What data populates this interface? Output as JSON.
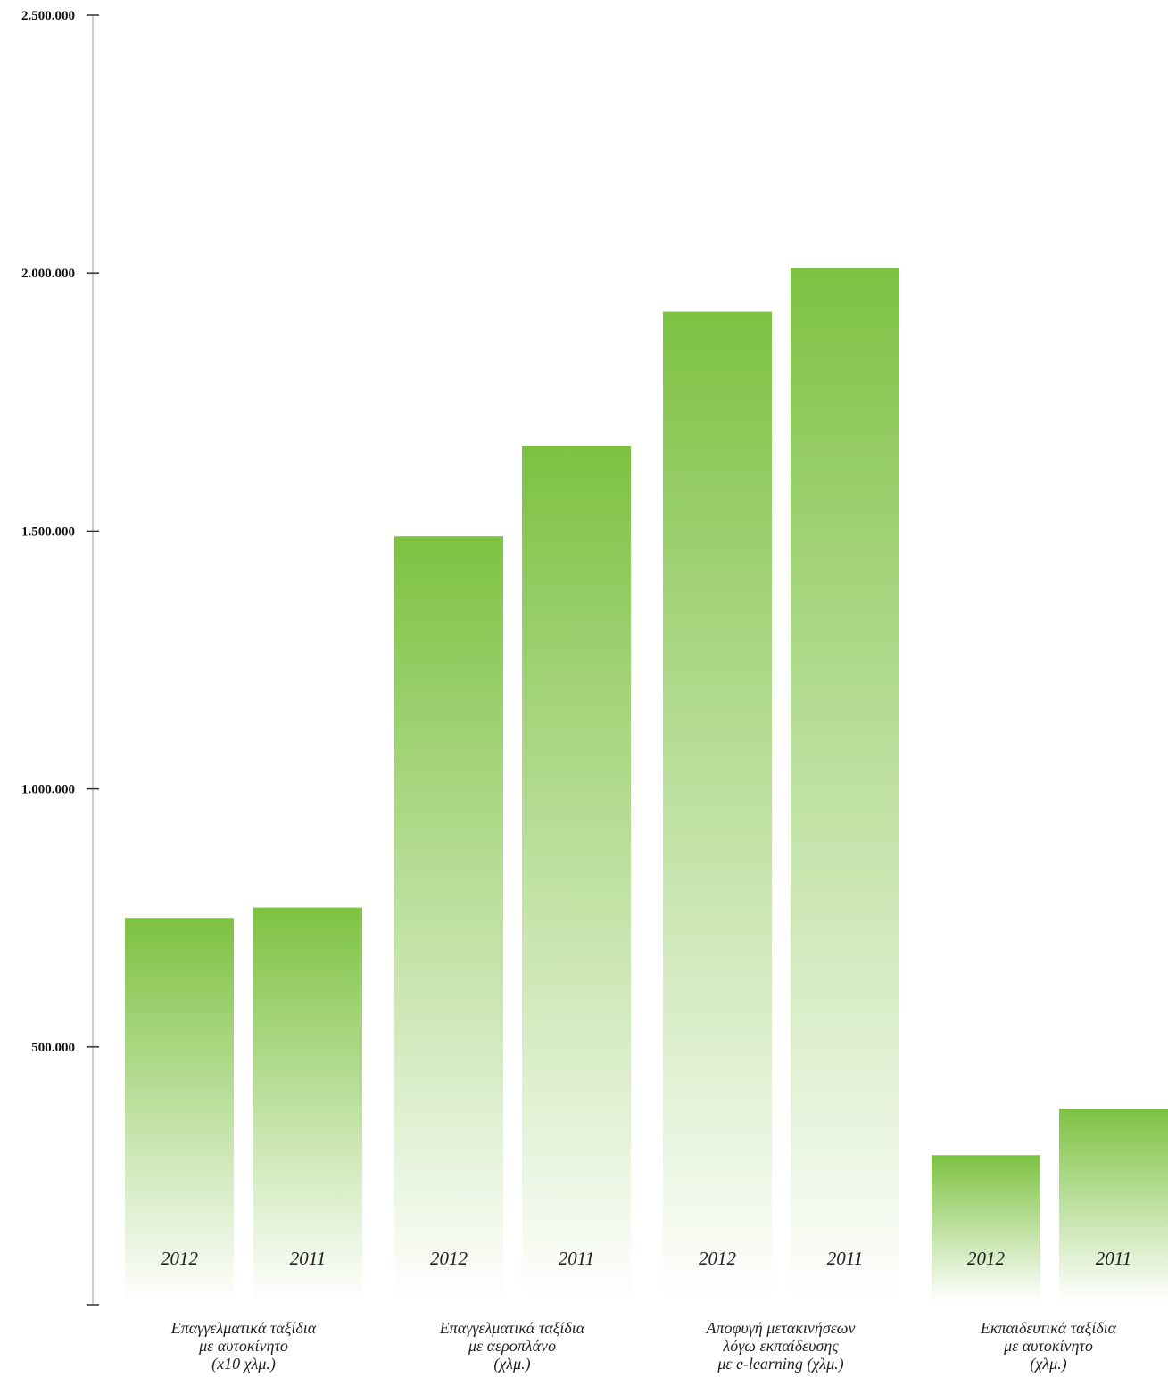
{
  "chart_data": {
    "type": "bar",
    "ylim": [
      0,
      2500000
    ],
    "yticks": [
      {
        "value": 500000,
        "label": "500.000"
      },
      {
        "value": 1000000,
        "label": "1.000.000"
      },
      {
        "value": 1500000,
        "label": "1.500.000"
      },
      {
        "value": 2000000,
        "label": "2.000.000"
      },
      {
        "value": 2500000,
        "label": "2.500.000"
      }
    ],
    "grid": false,
    "colors": {
      "bar_top": "#7dc242",
      "bar_bottom": "#ffffff",
      "axis": "#999999"
    },
    "categories": [
      {
        "label_lines": [
          "Επαγγελματικά ταξίδια",
          "με αυτοκίνητο",
          "(x10 χλμ.)"
        ],
        "bars": [
          {
            "year": "2012",
            "value": 750000
          },
          {
            "year": "2011",
            "value": 770000
          }
        ]
      },
      {
        "label_lines": [
          "Επαγγελματικά ταξίδια",
          "με αεροπλάνο",
          "(χλμ.)"
        ],
        "bars": [
          {
            "year": "2012",
            "value": 1490000
          },
          {
            "year": "2011",
            "value": 1665000
          }
        ]
      },
      {
        "label_lines": [
          "Αποφυγή μετακινήσεων",
          "λόγω εκπαίδευσης",
          "με e-learning (χλμ.)"
        ],
        "bars": [
          {
            "year": "2012",
            "value": 1925000
          },
          {
            "year": "2011",
            "value": 2010000
          }
        ]
      },
      {
        "label_lines": [
          "Εκπαιδευτικά ταξίδια",
          "με αυτοκίνητο",
          "(χλμ.)"
        ],
        "bars": [
          {
            "year": "2012",
            "value": 290000
          },
          {
            "year": "2011",
            "value": 380000
          }
        ]
      }
    ]
  }
}
